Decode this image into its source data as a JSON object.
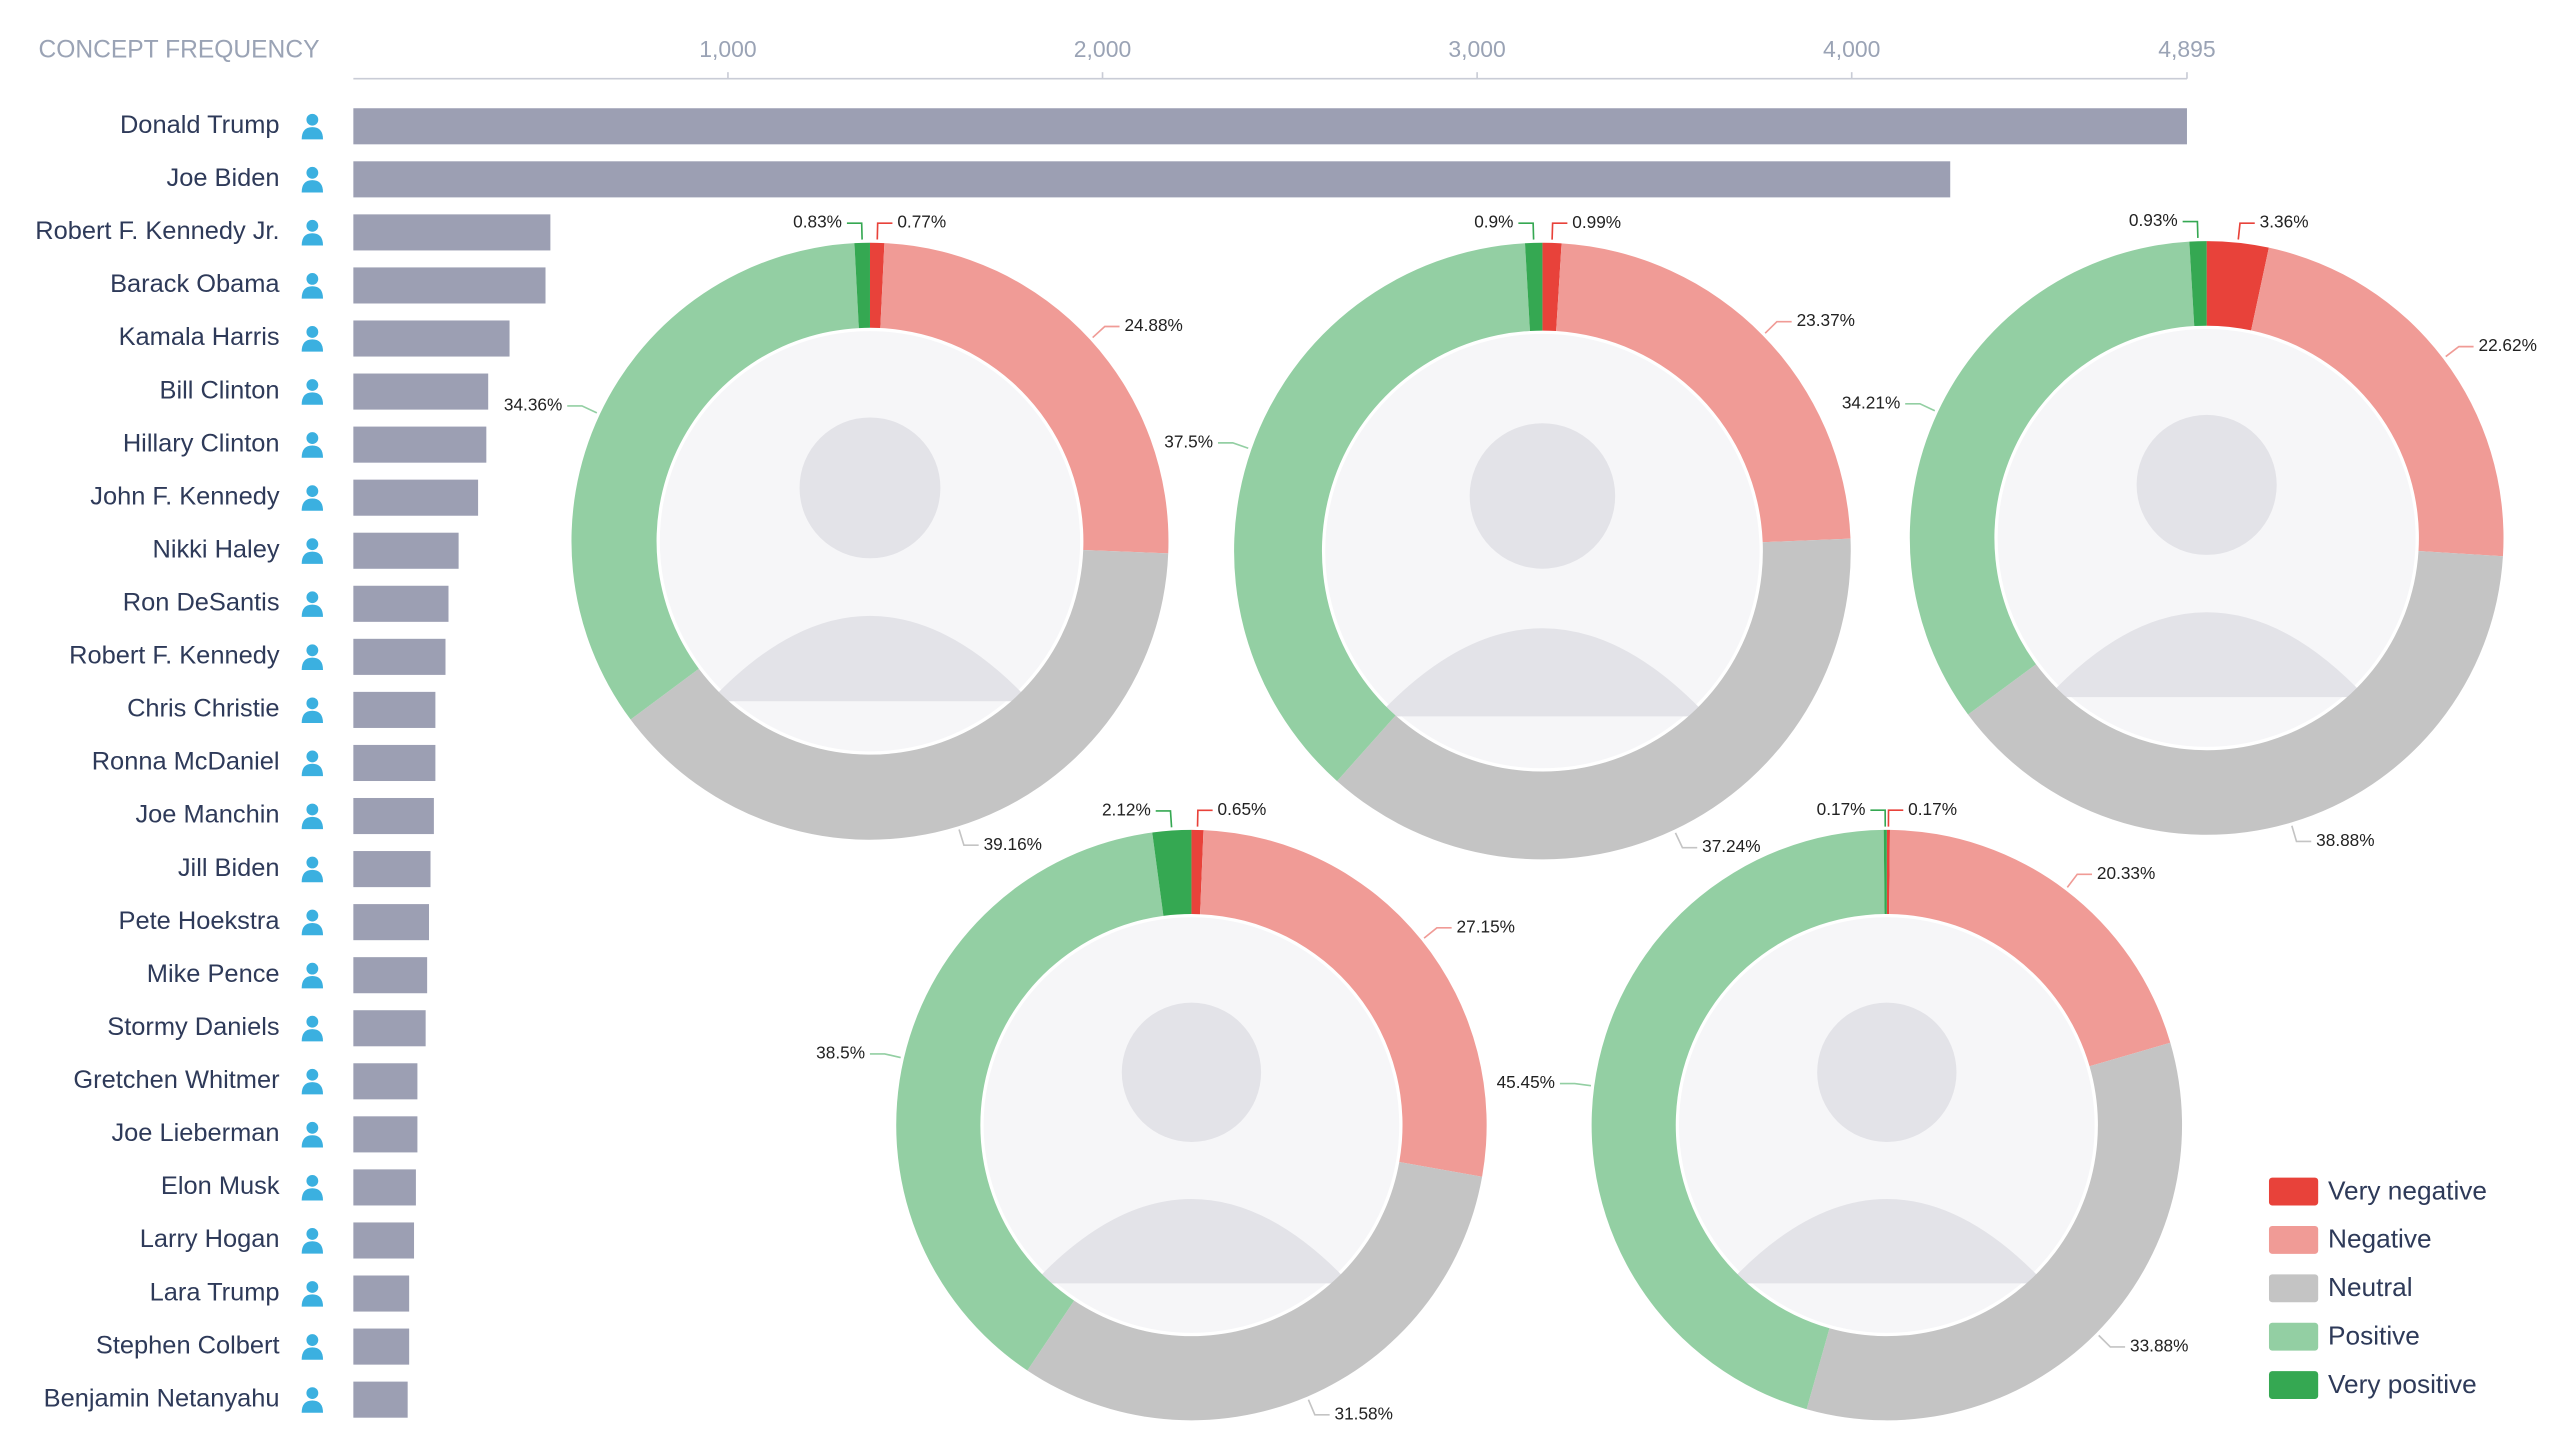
{
  "chart_data": [
    {
      "type": "hbar",
      "title": "CONCEPT FREQUENCY",
      "categories": [
        "Donald Trump",
        "Joe Biden",
        "Robert F. Kennedy Jr.",
        "Barack Obama",
        "Kamala Harris",
        "Bill Clinton",
        "Hillary Clinton",
        "John F. Kennedy",
        "Nikki Haley",
        "Ron DeSantis",
        "Robert F. Kennedy",
        "Chris Christie",
        "Ronna McDaniel",
        "Joe Manchin",
        "Jill Biden",
        "Pete Hoekstra",
        "Mike Pence",
        "Stormy Daniels",
        "Gretchen Whitmer",
        "Joe Lieberman",
        "Elon Musk",
        "Larry Hogan",
        "Lara Trump",
        "Stephen Colbert",
        "Benjamin Netanyahu"
      ],
      "values": [
        4895,
        4263,
        526,
        513,
        417,
        360,
        355,
        333,
        281,
        254,
        246,
        219,
        219,
        215,
        206,
        202,
        197,
        193,
        171,
        171,
        167,
        162,
        149,
        149,
        145
      ],
      "color": "#9c9fb3",
      "icon_color": "#3bb0e0",
      "xlim": [
        0,
        4895
      ],
      "xticks": [
        {
          "value": 1000,
          "label": "1,000"
        },
        {
          "value": 2000,
          "label": "2,000"
        },
        {
          "value": 3000,
          "label": "3,000"
        },
        {
          "value": 4000,
          "label": "4,000"
        },
        {
          "value": 4895,
          "label": "4,895"
        }
      ]
    },
    {
      "type": "donut",
      "categories": [
        "Very negative",
        "Negative",
        "Neutral",
        "Positive",
        "Very positive"
      ],
      "colors": [
        "#e8423a",
        "#f09b96",
        "#c4c4c4",
        "#93cfa3",
        "#35a852"
      ],
      "legend": "bottom-right",
      "series": [
        {
          "values": [
            0.77,
            24.88,
            39.16,
            34.36,
            0.83
          ],
          "value_labels": [
            "0.77%",
            "24.88%",
            "39.16%",
            "34.36%",
            "0.83%"
          ]
        },
        {
          "values": [
            0.99,
            23.37,
            37.24,
            37.5,
            0.9
          ],
          "value_labels": [
            "0.99%",
            "23.37%",
            "37.24%",
            "37.5%",
            "0.9%"
          ]
        },
        {
          "values": [
            3.36,
            22.62,
            38.88,
            34.21,
            0.93
          ],
          "value_labels": [
            "3.36%",
            "22.62%",
            "38.88%",
            "34.21%",
            "0.93%"
          ]
        },
        {
          "values": [
            0.65,
            27.15,
            31.58,
            38.5,
            2.12
          ],
          "value_labels": [
            "0.65%",
            "27.15%",
            "31.58%",
            "38.5%",
            "2.12%"
          ]
        },
        {
          "values": [
            0.17,
            20.33,
            33.88,
            45.45,
            0.17
          ],
          "value_labels": [
            "0.17%",
            "20.33%",
            "33.88%",
            "45.45%",
            "0.17%"
          ]
        }
      ]
    }
  ]
}
